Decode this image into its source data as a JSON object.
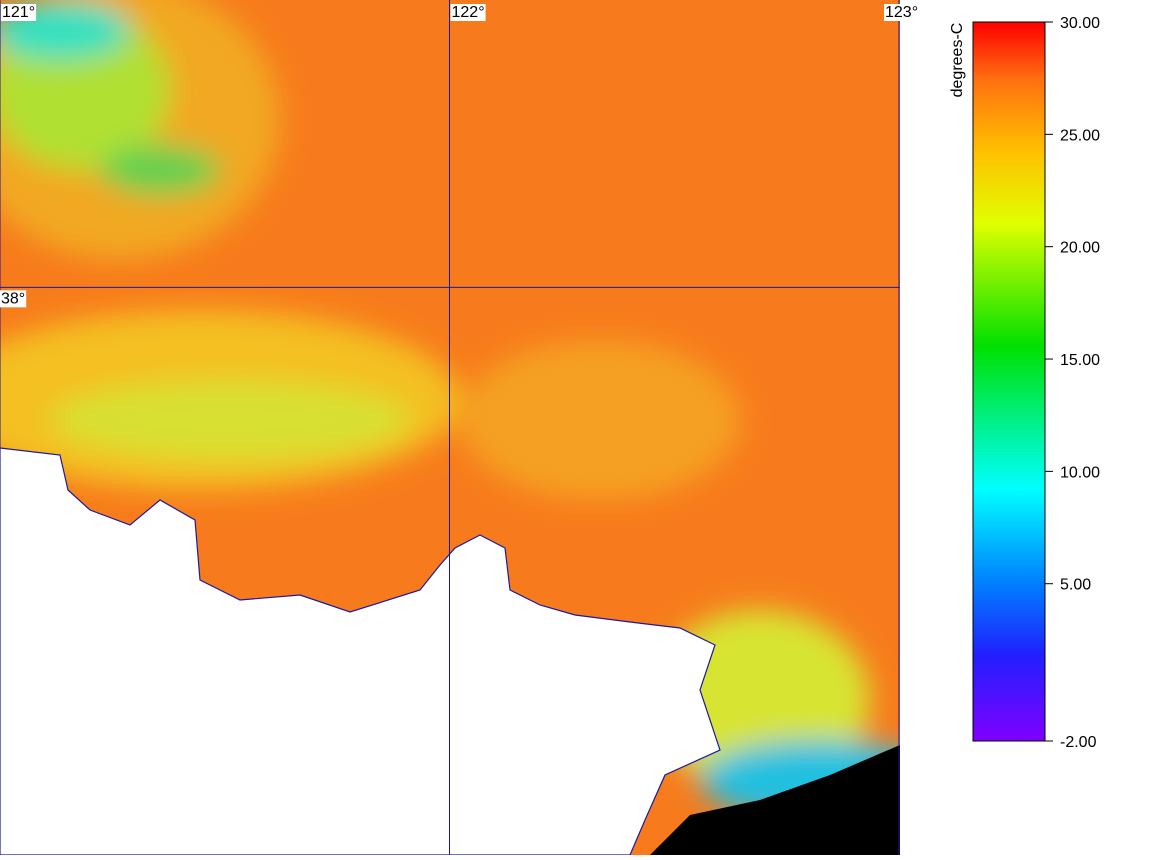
{
  "map": {
    "lonlim": [
      121,
      123.0022
    ],
    "latlim": [
      36.74,
      38.6378
    ],
    "longitudes": [
      {
        "value": 121,
        "label": "121°"
      },
      {
        "value": 122,
        "label": "122°"
      },
      {
        "value": 123,
        "label": "123°"
      }
    ],
    "latitudes": [
      {
        "value": 38,
        "label": "38°"
      }
    ]
  },
  "colorbar": {
    "unit": "degrees-C",
    "range": [
      -2,
      30
    ],
    "ticks": [
      {
        "value": 30,
        "label": "30.00"
      },
      {
        "value": 25,
        "label": "25.00"
      },
      {
        "value": 20,
        "label": "20.00"
      },
      {
        "value": 15,
        "label": "15.00"
      },
      {
        "value": 10,
        "label": "10.00"
      },
      {
        "value": 5,
        "label": "5.00"
      },
      {
        "value": -2,
        "label": "-2.00"
      }
    ]
  }
}
